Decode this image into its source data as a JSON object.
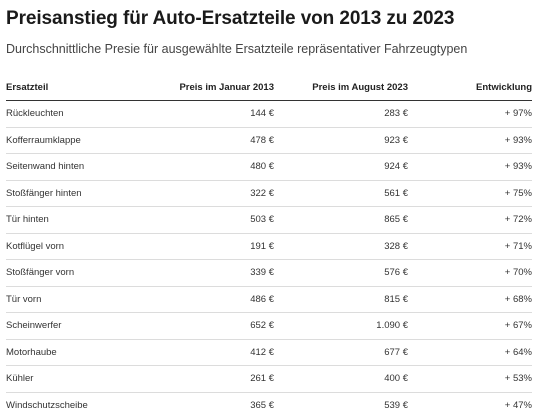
{
  "chart_data": {
    "type": "table",
    "title": "Preisanstieg für Auto-Ersatzteile von 2013 zu 2023",
    "subtitle": "Durchschnittliche Presie für ausgewählte Ersatzteile repräsentativer Fahrzeugtypen",
    "columns": [
      "Ersatzteil",
      "Preis im Januar 2013",
      "Preis im August 2023",
      "Entwicklung"
    ],
    "rows": [
      {
        "part": "Rückleuchten",
        "jan2013": "144 €",
        "aug2023": "283 €",
        "change": "+ 97%"
      },
      {
        "part": "Kofferraumklappe",
        "jan2013": "478 €",
        "aug2023": "923 €",
        "change": "+ 93%"
      },
      {
        "part": "Seitenwand hinten",
        "jan2013": "480 €",
        "aug2023": "924 €",
        "change": "+ 93%"
      },
      {
        "part": "Stoßfänger hinten",
        "jan2013": "322 €",
        "aug2023": "561 €",
        "change": "+ 75%"
      },
      {
        "part": "Tür hinten",
        "jan2013": "503 €",
        "aug2023": "865 €",
        "change": "+ 72%"
      },
      {
        "part": "Kotflügel vorn",
        "jan2013": "191 €",
        "aug2023": "328 €",
        "change": "+ 71%"
      },
      {
        "part": "Stoßfänger vorn",
        "jan2013": "339 €",
        "aug2023": "576 €",
        "change": "+ 70%"
      },
      {
        "part": "Tür vorn",
        "jan2013": "486 €",
        "aug2023": "815 €",
        "change": "+ 68%"
      },
      {
        "part": "Scheinwerfer",
        "jan2013": "652 €",
        "aug2023": "1.090 €",
        "change": "+ 67%"
      },
      {
        "part": "Motorhaube",
        "jan2013": "412 €",
        "aug2023": "677 €",
        "change": "+ 64%"
      },
      {
        "part": "Kühler",
        "jan2013": "261 €",
        "aug2023": "400 €",
        "change": "+ 53%"
      },
      {
        "part": "Windschutzscheibe",
        "jan2013": "365 €",
        "aug2023": "539 €",
        "change": "+ 47%"
      }
    ]
  }
}
